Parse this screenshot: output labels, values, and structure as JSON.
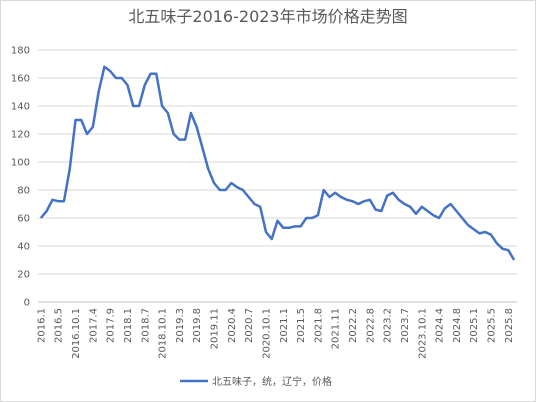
{
  "chart_data": {
    "type": "line",
    "title": "北五味子2016-2023年市场价格走势图",
    "categories": [
      "2016.1",
      null,
      null,
      "2016.5",
      null,
      null,
      "2016.10.1",
      null,
      null,
      "2017.4",
      null,
      null,
      "2017.9",
      null,
      null,
      "2018.1",
      null,
      null,
      "2018.7",
      null,
      null,
      "2018.10.1",
      null,
      null,
      "2019.3",
      null,
      null,
      "2019.8",
      null,
      null,
      "2019.11",
      null,
      null,
      "2020.4",
      null,
      null,
      "2020.7",
      null,
      null,
      "2020.10.1",
      null,
      null,
      "2021.1",
      null,
      null,
      "2021.5",
      null,
      null,
      "2021.8",
      null,
      null,
      "2021.11",
      null,
      null,
      "2022.2",
      null,
      null,
      "2022.8",
      null,
      null,
      "2023.2",
      null,
      null,
      "2023.7",
      null,
      null,
      "2023.10.1",
      null,
      null,
      "2024.4",
      null,
      null,
      "2024.8",
      null,
      null,
      "2025.1",
      null,
      null,
      "2025.5",
      null,
      null,
      "2025.8",
      null
    ],
    "series": [
      {
        "name": "北五味子，统，辽宁，价格",
        "color": "#4472c4",
        "values": [
          60,
          65,
          73,
          72,
          72,
          95,
          130,
          130,
          120,
          125,
          150,
          168,
          165,
          160,
          160,
          155,
          140,
          140,
          155,
          163,
          163,
          140,
          135,
          120,
          116,
          116,
          135,
          125,
          110,
          95,
          85,
          80,
          80,
          85,
          82,
          80,
          75,
          70,
          68,
          50,
          45,
          58,
          53,
          53,
          54,
          54,
          60,
          60,
          62,
          80,
          75,
          78,
          75,
          73,
          72,
          70,
          72,
          73,
          66,
          65,
          76,
          78,
          73,
          70,
          68,
          63,
          68,
          65,
          62,
          60,
          67,
          70,
          65,
          60,
          55,
          52,
          49,
          50,
          48,
          42,
          38,
          37,
          30
        ]
      }
    ],
    "ylim": [
      0,
      180
    ],
    "yticks": [
      0,
      20,
      40,
      60,
      80,
      100,
      120,
      140,
      160,
      180
    ],
    "grid": true
  }
}
